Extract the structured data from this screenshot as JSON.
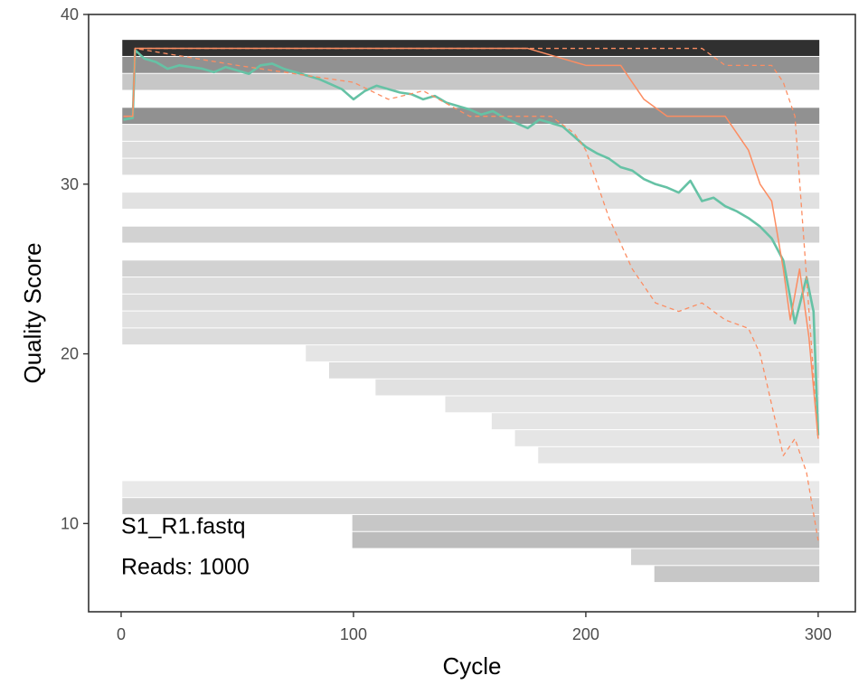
{
  "chart_data": {
    "type": "line",
    "xlabel": "Cycle",
    "ylabel": "Quality Score",
    "xlim": [
      -14,
      316
    ],
    "ylim": [
      4.8,
      40
    ],
    "x_ticks": [
      0,
      100,
      200,
      300
    ],
    "y_ticks": [
      10,
      20,
      30,
      40
    ],
    "x_tick_labels": [
      "0",
      "100",
      "200",
      "300"
    ],
    "y_tick_labels": [
      "10",
      "20",
      "30",
      "40"
    ],
    "grid": false,
    "legend": "none",
    "annotations": [
      {
        "text": "S1_R1.fastq",
        "x": 0,
        "y": 9.4
      },
      {
        "text": "Reads:  1000",
        "x": 0,
        "y": 7.0
      }
    ],
    "colors": {
      "mean": "#66c2a5",
      "median": "#fc8d62",
      "quartile": "#fc8d62",
      "heatmap_dark": "#1a1a1a",
      "heatmap_light": "#f2f2f2"
    },
    "cycles": 300,
    "heatmap_rows": [
      {
        "q": 38,
        "density": 0.9,
        "from": 1,
        "to": 300
      },
      {
        "q": 37,
        "density": 0.45,
        "from": 1,
        "to": 300
      },
      {
        "q": 36,
        "density": 0.2,
        "from": 1,
        "to": 300
      },
      {
        "q": 34,
        "density": 0.45,
        "from": 1,
        "to": 300
      },
      {
        "q": 33,
        "density": 0.1,
        "from": 1,
        "to": 300
      },
      {
        "q": 32,
        "density": 0.1,
        "from": 1,
        "to": 300
      },
      {
        "q": 31,
        "density": 0.1,
        "from": 1,
        "to": 300
      },
      {
        "q": 29,
        "density": 0.08,
        "from": 1,
        "to": 300
      },
      {
        "q": 27,
        "density": 0.15,
        "from": 1,
        "to": 300
      },
      {
        "q": 25,
        "density": 0.15,
        "from": 1,
        "to": 300
      },
      {
        "q": 24,
        "density": 0.1,
        "from": 1,
        "to": 300
      },
      {
        "q": 23,
        "density": 0.1,
        "from": 1,
        "to": 300
      },
      {
        "q": 22,
        "density": 0.08,
        "from": 1,
        "to": 300
      },
      {
        "q": 21,
        "density": 0.1,
        "from": 1,
        "to": 300
      },
      {
        "q": 20,
        "density": 0.06,
        "from": 80,
        "to": 300
      },
      {
        "q": 19,
        "density": 0.1,
        "from": 90,
        "to": 300
      },
      {
        "q": 18,
        "density": 0.08,
        "from": 110,
        "to": 300
      },
      {
        "q": 17,
        "density": 0.06,
        "from": 140,
        "to": 300
      },
      {
        "q": 16,
        "density": 0.06,
        "from": 160,
        "to": 300
      },
      {
        "q": 15,
        "density": 0.06,
        "from": 170,
        "to": 300
      },
      {
        "q": 14,
        "density": 0.06,
        "from": 180,
        "to": 300
      },
      {
        "q": 12,
        "density": 0.04,
        "from": 1,
        "to": 300
      },
      {
        "q": 11,
        "density": 0.15,
        "from": 1,
        "to": 300
      },
      {
        "q": 10,
        "density": 0.2,
        "from": 100,
        "to": 300
      },
      {
        "q": 9,
        "density": 0.25,
        "from": 100,
        "to": 300
      },
      {
        "q": 8,
        "density": 0.15,
        "from": 220,
        "to": 300
      },
      {
        "q": 7,
        "density": 0.2,
        "from": 230,
        "to": 300
      }
    ],
    "series": [
      {
        "role": "mean",
        "x": [
          1,
          5,
          6,
          10,
          15,
          20,
          25,
          30,
          35,
          40,
          45,
          50,
          55,
          60,
          65,
          70,
          75,
          80,
          85,
          90,
          95,
          100,
          105,
          110,
          115,
          120,
          125,
          130,
          135,
          140,
          145,
          150,
          155,
          160,
          165,
          170,
          175,
          180,
          185,
          190,
          195,
          200,
          205,
          210,
          215,
          220,
          225,
          230,
          235,
          240,
          245,
          250,
          255,
          260,
          265,
          270,
          275,
          280,
          285,
          290,
          295,
          298,
          300
        ],
        "y": [
          33.8,
          33.9,
          37.9,
          37.4,
          37.2,
          36.8,
          37.0,
          36.9,
          36.8,
          36.6,
          36.9,
          36.7,
          36.5,
          37.0,
          37.1,
          36.8,
          36.6,
          36.4,
          36.2,
          35.9,
          35.6,
          35.0,
          35.5,
          35.8,
          35.6,
          35.4,
          35.3,
          35.0,
          35.2,
          34.8,
          34.6,
          34.4,
          34.1,
          34.3,
          33.9,
          33.6,
          33.3,
          33.8,
          33.6,
          33.4,
          32.8,
          32.2,
          31.8,
          31.5,
          31.0,
          30.8,
          30.3,
          30.0,
          29.8,
          29.5,
          30.2,
          29.0,
          29.2,
          28.7,
          28.4,
          28.0,
          27.5,
          26.8,
          25.5,
          21.8,
          24.5,
          22.5,
          15.2
        ]
      },
      {
        "role": "median",
        "x": [
          1,
          5,
          6,
          50,
          100,
          150,
          165,
          175,
          200,
          215,
          225,
          235,
          248,
          260,
          270,
          275,
          280,
          285,
          288,
          292,
          296,
          300
        ],
        "y": [
          34.0,
          34.0,
          38.0,
          38.0,
          38.0,
          38.0,
          38.0,
          38.0,
          37.0,
          37.0,
          35.0,
          34.0,
          34.0,
          34.0,
          32.0,
          30.0,
          29.0,
          25.0,
          22.0,
          25.0,
          21.0,
          15.0
        ]
      },
      {
        "role": "q25",
        "x": [
          1,
          5,
          6,
          50,
          100,
          115,
          130,
          150,
          165,
          175,
          185,
          195,
          200,
          210,
          220,
          230,
          240,
          250,
          260,
          270,
          275,
          280,
          285,
          290,
          295,
          300
        ],
        "y": [
          34.0,
          34.0,
          38.0,
          37.0,
          36.0,
          35.0,
          35.5,
          34.0,
          34.0,
          34.0,
          34.0,
          33.0,
          32.0,
          28.0,
          25.0,
          23.0,
          22.5,
          23.0,
          22.0,
          21.5,
          20.0,
          17.0,
          14.0,
          15.0,
          13.0,
          9.0
        ]
      },
      {
        "role": "q75",
        "x": [
          1,
          5,
          6,
          100,
          200,
          240,
          250,
          260,
          270,
          280,
          285,
          290,
          300
        ],
        "y": [
          34.0,
          34.0,
          38.0,
          38.0,
          38.0,
          38.0,
          38.0,
          37.0,
          37.0,
          37.0,
          36.0,
          34.0,
          15.0
        ]
      }
    ]
  }
}
